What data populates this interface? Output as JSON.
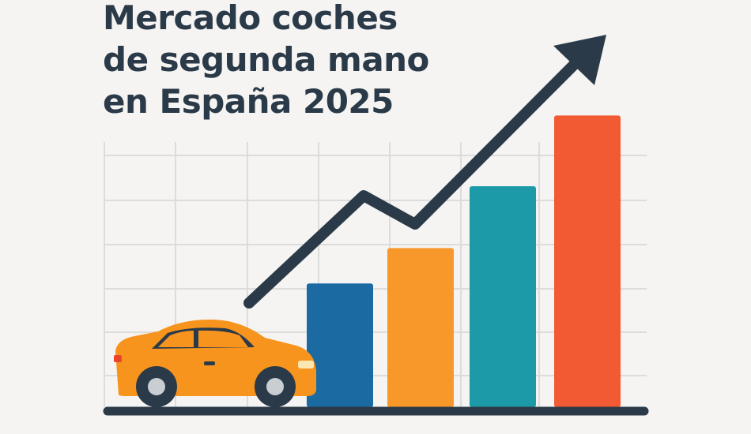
{
  "chart_data": {
    "type": "bar",
    "title": "Mercado coches\nde segunda mano\nen España 2025",
    "values": [
      2.8,
      3.6,
      5.0,
      6.6
    ],
    "colors": [
      "#1b6aa1",
      "#f8972a",
      "#1c9aa8",
      "#f15a32"
    ],
    "ylim": [
      0,
      7
    ],
    "grid": true
  }
}
